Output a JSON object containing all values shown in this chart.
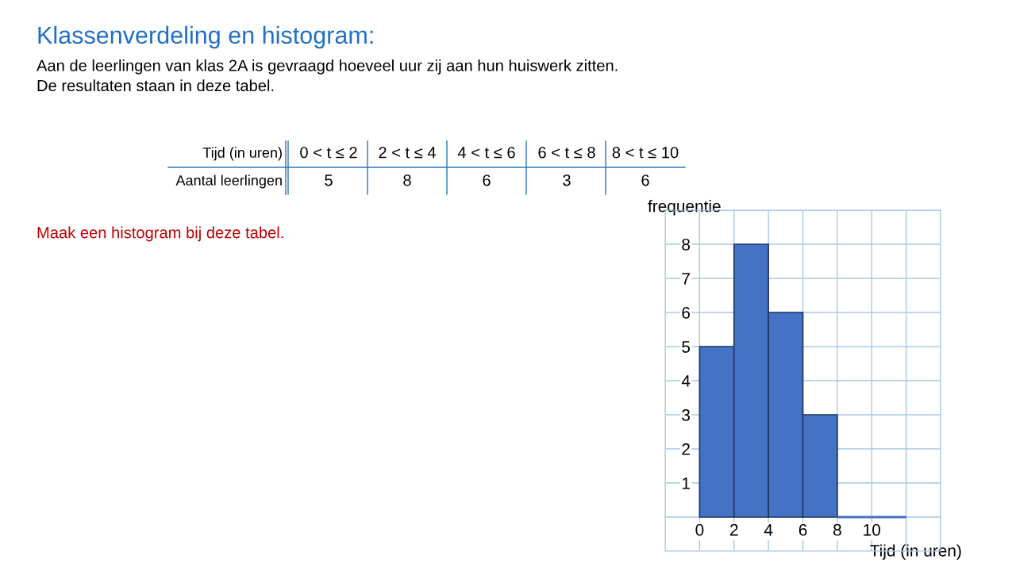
{
  "chart_data": {
    "type": "histogram",
    "title": "Klassenverdeling en histogram:",
    "subtitle": "Aan de leerlingen van klas 2A is gevraagd hoeveel uur zij aan hun huiswerk zitten.\nDe resultaten staan in deze tabel.",
    "annotations": [
      "Maak een histogram bij deze tabel.",
      "Tijd (in uren)",
      "0 < t ≤ 2",
      "2 < t ≤ 4",
      "4 < t ≤ 6",
      "6 < t ≤ 8",
      "8 < t ≤ 10",
      "Aantal leerlingen",
      "5",
      "8",
      "6",
      "3",
      "6"
    ],
    "xlabel": "Tijd (in uren)",
    "ylabel": "frequentie",
    "bins": [
      0,
      2,
      4,
      6,
      8,
      10,
      12
    ],
    "values": [
      5,
      8,
      6,
      3,
      0,
      0
    ],
    "color": "#4472c4",
    "xlim": [
      -2,
      14
    ],
    "ylim": [
      -1,
      9
    ],
    "xticks": [
      {
        "value": -2,
        "label": null
      },
      0,
      2,
      4,
      6,
      8,
      10,
      {
        "value": 12,
        "label": null
      },
      {
        "value": 14,
        "label": null
      }
    ],
    "yticks": [
      {
        "value": -1,
        "label": null
      },
      {
        "value": 0,
        "label": null
      },
      1,
      2,
      3,
      4,
      5,
      6,
      7,
      8,
      {
        "value": 9,
        "label": null
      }
    ],
    "grid": true
  }
}
